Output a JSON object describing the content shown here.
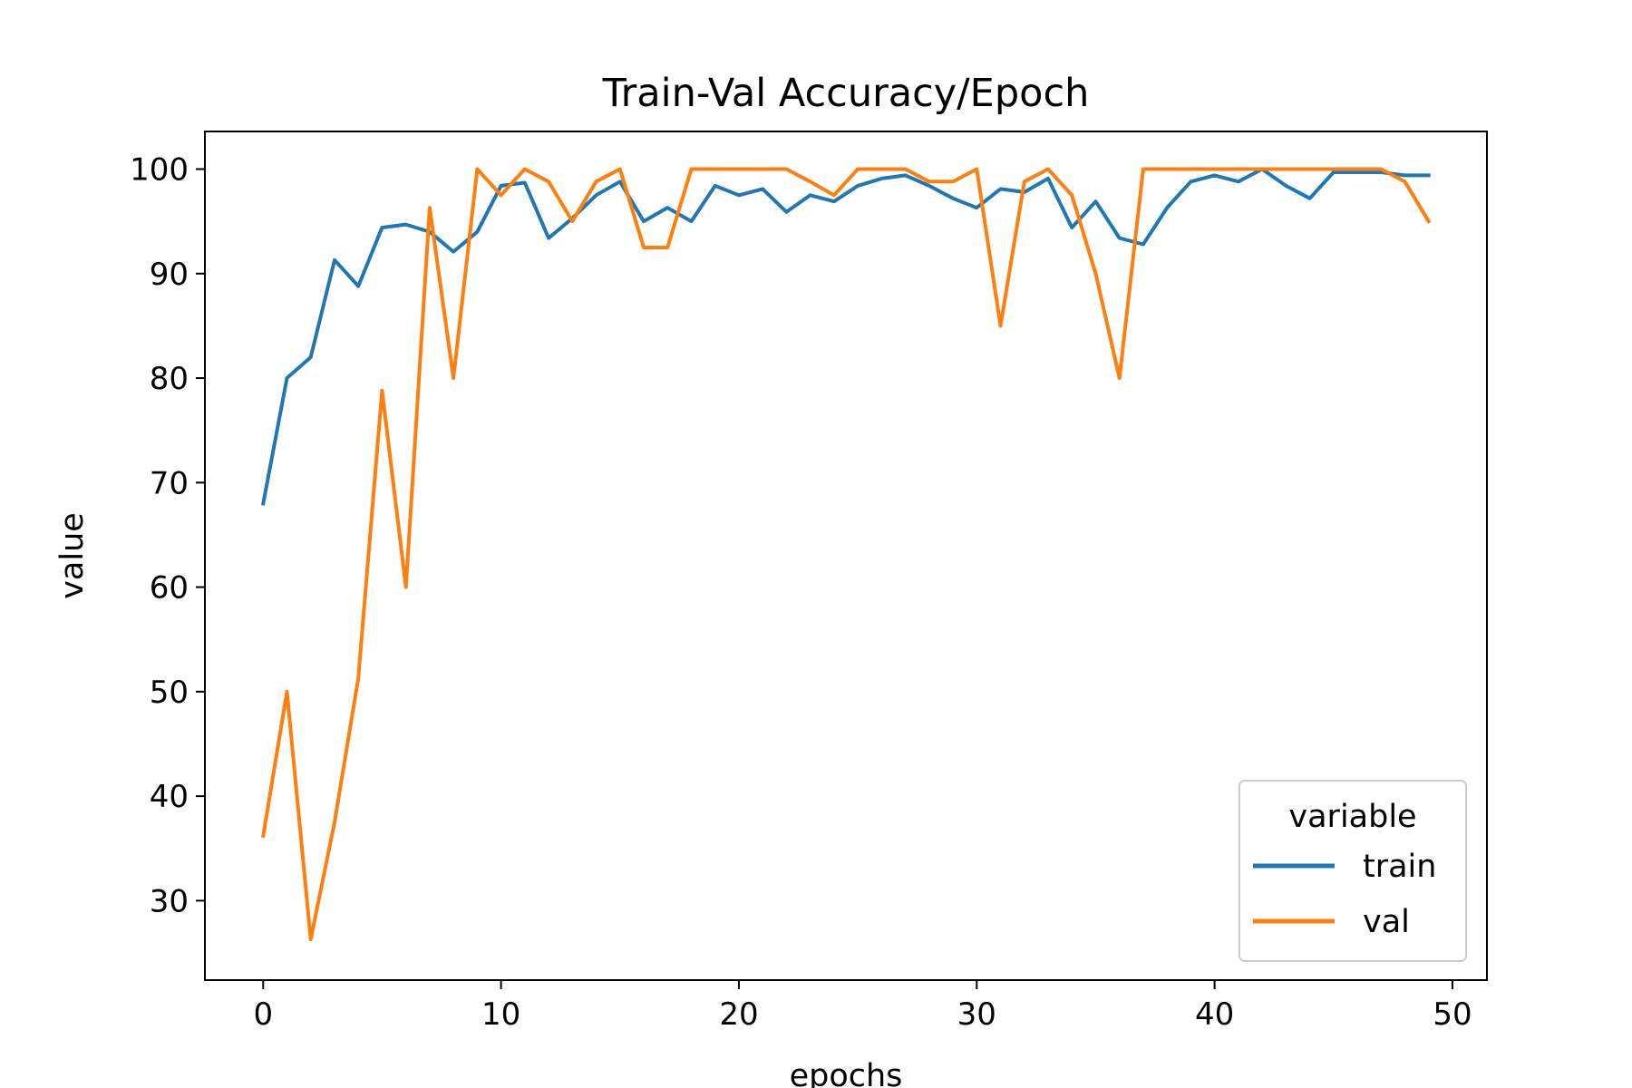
{
  "chart_data": {
    "type": "line",
    "title": "Train-Val Accuracy/Epoch",
    "xlabel": "epochs",
    "ylabel": "value",
    "xlim": [
      -2.45,
      51.45
    ],
    "ylim": [
      22.4,
      103.6
    ],
    "xticks": [
      0,
      10,
      20,
      30,
      40,
      50
    ],
    "yticks": [
      30,
      40,
      50,
      60,
      70,
      80,
      90,
      100
    ],
    "grid": false,
    "legend": {
      "title": "variable",
      "position": "lower-right"
    },
    "x": [
      0,
      1,
      2,
      3,
      4,
      5,
      6,
      7,
      8,
      9,
      10,
      11,
      12,
      13,
      14,
      15,
      16,
      17,
      18,
      19,
      20,
      21,
      22,
      23,
      24,
      25,
      26,
      27,
      28,
      29,
      30,
      31,
      32,
      33,
      34,
      35,
      36,
      37,
      38,
      39,
      40,
      41,
      42,
      43,
      44,
      45,
      46,
      47,
      48,
      49
    ],
    "series": [
      {
        "name": "train",
        "color": "#1f77b4",
        "values": [
          68.0,
          80.0,
          82.0,
          91.3,
          88.8,
          94.4,
          94.7,
          94.0,
          92.1,
          94.0,
          98.4,
          98.7,
          93.4,
          95.3,
          97.5,
          98.8,
          95.0,
          96.3,
          95.0,
          98.4,
          97.5,
          98.1,
          95.9,
          97.5,
          96.9,
          98.4,
          99.1,
          99.4,
          98.4,
          97.2,
          96.3,
          98.1,
          97.8,
          99.1,
          94.4,
          96.9,
          93.4,
          92.8,
          96.3,
          98.8,
          99.4,
          98.8,
          100.0,
          98.4,
          97.2,
          99.7,
          99.7,
          99.7,
          99.4,
          99.4
        ]
      },
      {
        "name": "val",
        "color": "#ff7f0e",
        "values": [
          36.2,
          50.0,
          26.3,
          37.5,
          51.3,
          78.8,
          60.0,
          96.3,
          80.0,
          100.0,
          97.5,
          100.0,
          98.8,
          95.0,
          98.8,
          100.0,
          92.5,
          92.5,
          100.0,
          100.0,
          100.0,
          100.0,
          100.0,
          98.8,
          97.5,
          100.0,
          100.0,
          100.0,
          98.8,
          98.8,
          100.0,
          85.0,
          98.8,
          100.0,
          97.5,
          90.0,
          80.0,
          100.0,
          100.0,
          100.0,
          100.0,
          100.0,
          100.0,
          100.0,
          100.0,
          100.0,
          100.0,
          100.0,
          98.8,
          95.0
        ]
      }
    ]
  }
}
